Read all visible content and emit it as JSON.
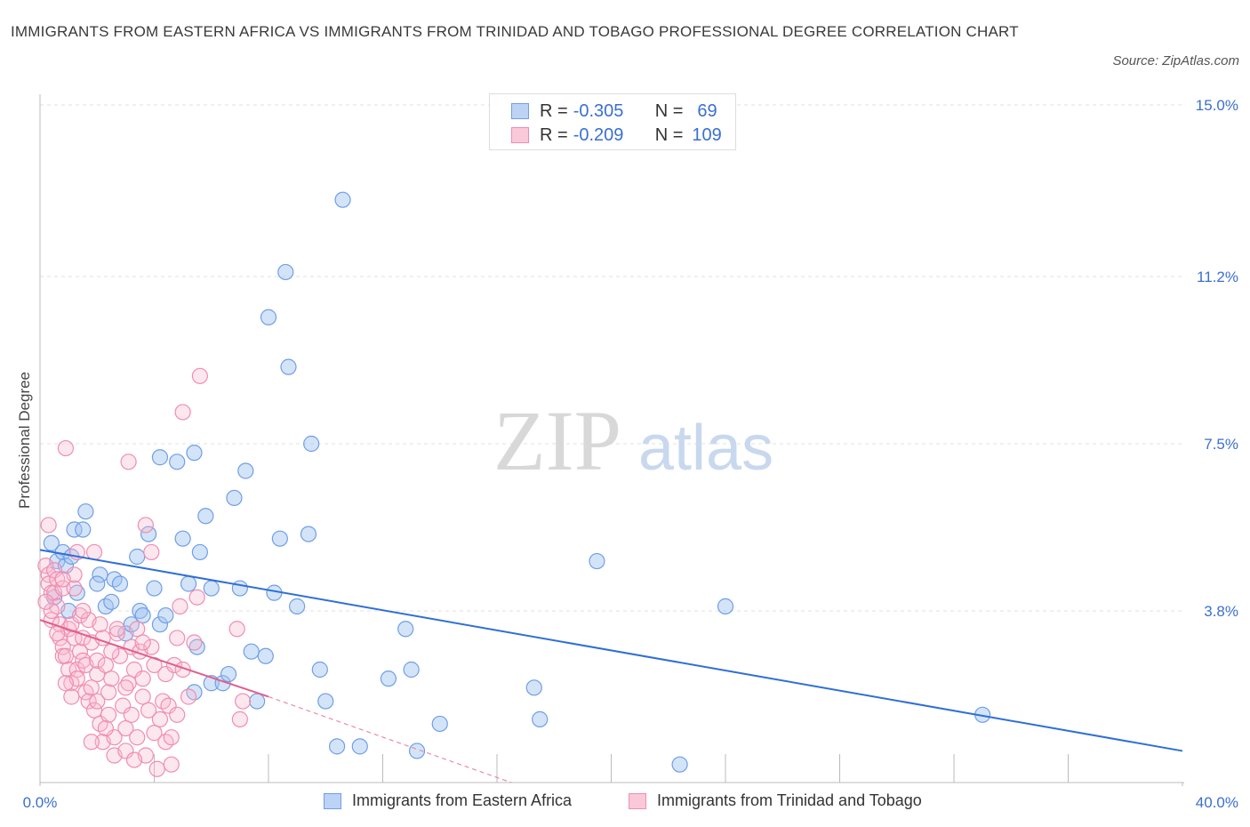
{
  "title": "IMMIGRANTS FROM EASTERN AFRICA VS IMMIGRANTS FROM TRINIDAD AND TOBAGO PROFESSIONAL DEGREE CORRELATION CHART",
  "source": "Source: ZipAtlas.com",
  "watermark": {
    "zip": "ZIP",
    "atlas": "atlas"
  },
  "legend": [
    {
      "r_label": "R =",
      "r_value": "-0.305",
      "n_label": "N =",
      "n_value": "69",
      "color": "#6f9ee8"
    },
    {
      "r_label": "R =",
      "r_value": "-0.209",
      "n_label": "N =",
      "n_value": "109",
      "color": "#f08db0"
    }
  ],
  "chart_data": {
    "type": "scatter",
    "title": "IMMIGRANTS FROM EASTERN AFRICA VS IMMIGRANTS FROM TRINIDAD AND TOBAGO PROFESSIONAL DEGREE CORRELATION CHART",
    "xlabel": "",
    "ylabel": "Professional Degree",
    "xlim": [
      0,
      40
    ],
    "ylim": [
      0,
      15
    ],
    "x_tick_labels": [
      "0.0%",
      "40.0%"
    ],
    "y_ticks": [
      3.8,
      7.5,
      11.2,
      15.0
    ],
    "y_tick_labels": [
      "3.8%",
      "7.5%",
      "11.2%",
      "15.0%"
    ],
    "grid": true,
    "legend_position": "top-center",
    "series": [
      {
        "name": "Immigrants from Eastern Africa",
        "color": "#6f9ee8",
        "trend": {
          "x": [
            0,
            40
          ],
          "y": [
            5.15,
            0.7
          ]
        },
        "points": [
          [
            0.4,
            5.3
          ],
          [
            0.6,
            4.9
          ],
          [
            0.8,
            5.1
          ],
          [
            0.9,
            4.8
          ],
          [
            1.1,
            5.0
          ],
          [
            1.2,
            5.6
          ],
          [
            1.5,
            5.6
          ],
          [
            1.6,
            6.0
          ],
          [
            1.3,
            4.2
          ],
          [
            2.1,
            4.6
          ],
          [
            2.0,
            4.4
          ],
          [
            2.3,
            3.9
          ],
          [
            2.6,
            4.5
          ],
          [
            2.8,
            4.4
          ],
          [
            3.0,
            3.3
          ],
          [
            3.2,
            3.5
          ],
          [
            3.4,
            5.0
          ],
          [
            3.5,
            3.8
          ],
          [
            3.6,
            3.7
          ],
          [
            3.8,
            5.5
          ],
          [
            4.0,
            4.3
          ],
          [
            4.2,
            3.5
          ],
          [
            4.4,
            3.7
          ],
          [
            4.2,
            7.2
          ],
          [
            4.8,
            7.1
          ],
          [
            5.0,
            5.4
          ],
          [
            5.2,
            4.4
          ],
          [
            5.4,
            7.3
          ],
          [
            5.6,
            5.1
          ],
          [
            5.8,
            5.9
          ],
          [
            6.0,
            4.3
          ],
          [
            5.5,
            3.0
          ],
          [
            5.4,
            2.0
          ],
          [
            6.0,
            2.2
          ],
          [
            6.4,
            2.2
          ],
          [
            6.6,
            2.4
          ],
          [
            6.8,
            6.3
          ],
          [
            7.0,
            4.3
          ],
          [
            7.2,
            6.9
          ],
          [
            7.4,
            2.9
          ],
          [
            7.6,
            1.8
          ],
          [
            7.9,
            2.8
          ],
          [
            8.0,
            10.3
          ],
          [
            8.2,
            4.2
          ],
          [
            8.4,
            5.4
          ],
          [
            8.6,
            11.3
          ],
          [
            8.7,
            9.2
          ],
          [
            9.0,
            3.9
          ],
          [
            9.4,
            5.5
          ],
          [
            9.5,
            7.5
          ],
          [
            9.8,
            2.5
          ],
          [
            10.0,
            1.8
          ],
          [
            10.4,
            0.8
          ],
          [
            10.6,
            12.9
          ],
          [
            11.2,
            0.8
          ],
          [
            12.2,
            2.3
          ],
          [
            12.8,
            3.4
          ],
          [
            13.0,
            2.5
          ],
          [
            13.2,
            0.7
          ],
          [
            14.0,
            1.3
          ],
          [
            17.3,
            2.1
          ],
          [
            17.5,
            1.4
          ],
          [
            19.5,
            4.9
          ],
          [
            22.4,
            0.4
          ],
          [
            24.0,
            3.9
          ],
          [
            33.0,
            1.5
          ],
          [
            0.5,
            4.1
          ],
          [
            1.0,
            3.8
          ],
          [
            2.5,
            4.0
          ]
        ]
      },
      {
        "name": "Immigrants from Trinidad and Tobago",
        "color": "#f08db0",
        "trend": {
          "x": [
            0,
            8
          ],
          "y": [
            3.6,
            1.9
          ]
        },
        "trend_dashed": {
          "x": [
            8,
            16.5
          ],
          "y": [
            1.9,
            0.0
          ]
        },
        "points": [
          [
            0.2,
            4.8
          ],
          [
            0.3,
            5.7
          ],
          [
            0.3,
            4.6
          ],
          [
            0.3,
            4.4
          ],
          [
            0.4,
            4.2
          ],
          [
            0.4,
            3.6
          ],
          [
            0.5,
            4.7
          ],
          [
            0.5,
            4.2
          ],
          [
            0.6,
            3.9
          ],
          [
            0.6,
            4.5
          ],
          [
            0.7,
            3.5
          ],
          [
            0.7,
            3.2
          ],
          [
            0.8,
            4.3
          ],
          [
            0.8,
            3.0
          ],
          [
            0.8,
            2.8
          ],
          [
            0.9,
            2.8
          ],
          [
            0.9,
            7.4
          ],
          [
            1.0,
            3.4
          ],
          [
            1.0,
            2.5
          ],
          [
            1.1,
            2.2
          ],
          [
            1.1,
            3.5
          ],
          [
            1.2,
            4.3
          ],
          [
            1.2,
            3.2
          ],
          [
            1.3,
            2.5
          ],
          [
            1.3,
            2.3
          ],
          [
            1.3,
            5.1
          ],
          [
            1.4,
            3.7
          ],
          [
            1.4,
            2.9
          ],
          [
            1.5,
            3.2
          ],
          [
            1.5,
            2.7
          ],
          [
            1.6,
            2.6
          ],
          [
            1.6,
            2.0
          ],
          [
            1.7,
            1.8
          ],
          [
            1.7,
            3.6
          ],
          [
            1.8,
            3.1
          ],
          [
            1.8,
            2.1
          ],
          [
            1.9,
            1.6
          ],
          [
            2.0,
            2.4
          ],
          [
            2.0,
            1.8
          ],
          [
            2.0,
            2.7
          ],
          [
            2.1,
            3.5
          ],
          [
            2.1,
            1.3
          ],
          [
            2.2,
            0.9
          ],
          [
            2.2,
            3.2
          ],
          [
            2.3,
            2.6
          ],
          [
            2.4,
            1.5
          ],
          [
            2.4,
            2.0
          ],
          [
            2.5,
            2.3
          ],
          [
            2.6,
            1.0
          ],
          [
            2.6,
            0.6
          ],
          [
            2.7,
            3.3
          ],
          [
            2.8,
            2.8
          ],
          [
            2.9,
            1.7
          ],
          [
            3.0,
            1.2
          ],
          [
            3.0,
            0.7
          ],
          [
            3.1,
            2.2
          ],
          [
            3.2,
            3.0
          ],
          [
            3.2,
            1.5
          ],
          [
            3.3,
            2.5
          ],
          [
            3.4,
            1.0
          ],
          [
            3.4,
            3.4
          ],
          [
            3.5,
            2.9
          ],
          [
            3.6,
            2.3
          ],
          [
            3.6,
            1.9
          ],
          [
            3.7,
            0.6
          ],
          [
            3.7,
            5.7
          ],
          [
            3.8,
            1.6
          ],
          [
            3.9,
            3.0
          ],
          [
            4.0,
            2.6
          ],
          [
            4.0,
            1.1
          ],
          [
            4.1,
            0.3
          ],
          [
            4.2,
            1.4
          ],
          [
            4.3,
            1.8
          ],
          [
            4.4,
            0.9
          ],
          [
            4.4,
            2.4
          ],
          [
            4.5,
            1.7
          ],
          [
            4.6,
            1.0
          ],
          [
            4.7,
            2.6
          ],
          [
            4.8,
            3.2
          ],
          [
            4.8,
            1.5
          ],
          [
            4.9,
            3.9
          ],
          [
            5.0,
            2.5
          ],
          [
            5.0,
            8.2
          ],
          [
            5.2,
            1.9
          ],
          [
            5.4,
            3.1
          ],
          [
            5.5,
            4.1
          ],
          [
            5.6,
            9.0
          ],
          [
            3.1,
            7.1
          ],
          [
            6.9,
            3.4
          ],
          [
            7.0,
            1.4
          ],
          [
            7.1,
            1.8
          ],
          [
            3.9,
            5.1
          ],
          [
            1.9,
            5.1
          ],
          [
            0.6,
            3.3
          ],
          [
            0.9,
            2.2
          ],
          [
            1.5,
            3.8
          ],
          [
            2.7,
            3.4
          ],
          [
            0.4,
            3.8
          ],
          [
            1.2,
            4.6
          ],
          [
            1.8,
            0.9
          ],
          [
            2.3,
            1.2
          ],
          [
            3.3,
            0.5
          ],
          [
            4.6,
            0.4
          ],
          [
            3.0,
            2.1
          ],
          [
            0.2,
            4.0
          ],
          [
            0.8,
            4.5
          ],
          [
            1.1,
            1.9
          ],
          [
            2.5,
            2.9
          ],
          [
            3.6,
            3.1
          ]
        ]
      }
    ]
  },
  "bottom_legend": [
    {
      "label": "Immigrants from Eastern Africa",
      "color": "#6f9ee8"
    },
    {
      "label": "Immigrants from Trinidad and Tobago",
      "color": "#f08db0"
    }
  ]
}
